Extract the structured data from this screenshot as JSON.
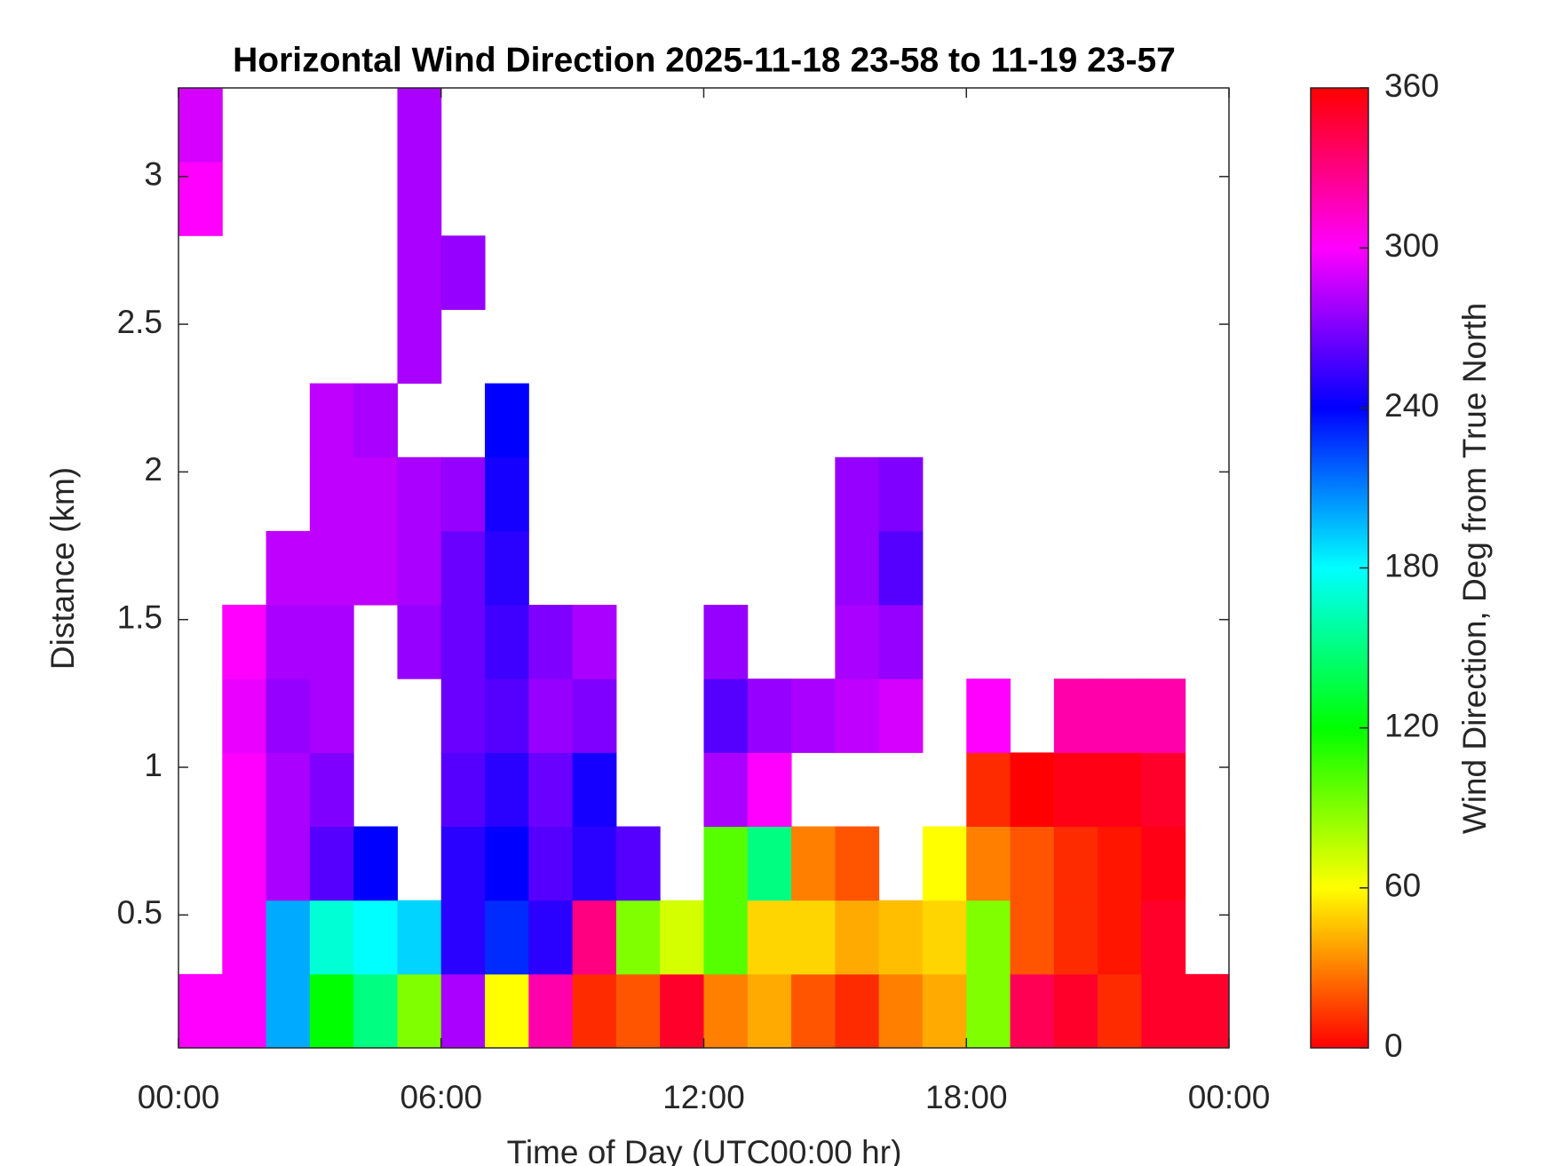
{
  "chart_data": {
    "type": "heatmap",
    "title": "Horizontal Wind Direction 2025-11-18 23-58 to 11-19 23-57",
    "x_label": "Time of Day (UTC00:00 hr)",
    "y_label": "Distance (km)",
    "colorbar_label": "Wind Direction, Deg from True North",
    "xlim": [
      0,
      24
    ],
    "xticks": [
      {
        "value": 0,
        "label": "00:00"
      },
      {
        "value": 6,
        "label": "06:00"
      },
      {
        "value": 12,
        "label": "12:00"
      },
      {
        "value": 18,
        "label": "18:00"
      },
      {
        "value": 24,
        "label": "00:00"
      }
    ],
    "ylim": [
      0.05,
      3.3
    ],
    "yticks": [
      0.5,
      1,
      1.5,
      2,
      2.5,
      3
    ],
    "clim": [
      0,
      360
    ],
    "cticks": [
      0,
      60,
      120,
      180,
      240,
      300,
      360
    ],
    "colormap": [
      "#ff0000",
      "#ffff00",
      "#00ff00",
      "#00ffff",
      "#0000ff",
      "#ff00ff",
      "#ff0000"
    ],
    "x_bins": [
      0,
      1,
      2,
      3,
      4,
      5,
      6,
      7,
      8,
      9,
      10,
      11,
      12,
      13,
      14,
      15,
      16,
      17,
      18,
      19,
      20,
      21,
      22,
      23,
      24
    ],
    "y_bins": [
      0.05,
      0.3,
      0.55,
      0.8,
      1.05,
      1.3,
      1.55,
      1.8,
      2.05,
      2.3,
      2.55,
      2.8,
      3.05,
      3.3
    ],
    "z": [
      [
        300,
        300,
        200,
        120,
        150,
        90,
        280,
        60,
        320,
        10,
        20,
        350,
        30,
        40,
        20,
        10,
        30,
        40,
        90,
        340,
        350,
        10,
        350,
        350
      ],
      [
        null,
        300,
        200,
        170,
        180,
        190,
        250,
        230,
        250,
        330,
        90,
        70,
        100,
        50,
        50,
        40,
        45,
        50,
        90,
        20,
        10,
        5,
        350,
        null
      ],
      [
        null,
        300,
        280,
        260,
        240,
        null,
        250,
        240,
        260,
        250,
        260,
        null,
        100,
        150,
        30,
        20,
        null,
        60,
        30,
        20,
        10,
        5,
        355,
        null
      ],
      [
        null,
        300,
        280,
        270,
        null,
        null,
        260,
        250,
        265,
        245,
        null,
        null,
        280,
        300,
        null,
        null,
        null,
        null,
        10,
        0,
        355,
        355,
        350,
        null
      ],
      [
        null,
        295,
        275,
        280,
        null,
        null,
        265,
        260,
        275,
        270,
        null,
        null,
        260,
        275,
        280,
        285,
        290,
        null,
        300,
        null,
        320,
        320,
        320,
        null
      ],
      [
        null,
        300,
        280,
        280,
        null,
        275,
        265,
        255,
        270,
        280,
        null,
        null,
        275,
        null,
        null,
        280,
        275,
        null,
        null,
        null,
        null,
        null,
        null,
        null
      ],
      [
        null,
        null,
        285,
        285,
        285,
        280,
        265,
        250,
        null,
        null,
        null,
        null,
        null,
        null,
        null,
        275,
        260,
        null,
        null,
        null,
        null,
        null,
        null,
        null
      ],
      [
        null,
        null,
        null,
        285,
        285,
        280,
        275,
        245,
        null,
        null,
        null,
        null,
        null,
        null,
        null,
        275,
        270,
        null,
        null,
        null,
        null,
        null,
        null,
        null
      ],
      [
        null,
        null,
        null,
        285,
        280,
        null,
        null,
        240,
        null,
        null,
        null,
        null,
        null,
        null,
        null,
        null,
        null,
        null,
        null,
        null,
        null,
        null,
        null,
        null
      ],
      [
        null,
        null,
        null,
        null,
        null,
        280,
        null,
        null,
        null,
        null,
        null,
        null,
        null,
        null,
        null,
        null,
        null,
        null,
        null,
        null,
        null,
        null,
        null,
        null
      ],
      [
        null,
        null,
        null,
        null,
        null,
        280,
        275,
        null,
        null,
        null,
        null,
        null,
        null,
        null,
        null,
        null,
        null,
        null,
        null,
        null,
        null,
        null,
        null,
        null
      ],
      [
        300,
        null,
        null,
        null,
        null,
        280,
        null,
        null,
        null,
        null,
        null,
        null,
        null,
        null,
        null,
        null,
        null,
        null,
        null,
        null,
        null,
        null,
        null,
        null
      ],
      [
        290,
        null,
        null,
        null,
        null,
        280,
        null,
        null,
        null,
        null,
        null,
        null,
        null,
        null,
        null,
        null,
        null,
        null,
        null,
        null,
        null,
        null,
        null,
        null
      ]
    ]
  }
}
